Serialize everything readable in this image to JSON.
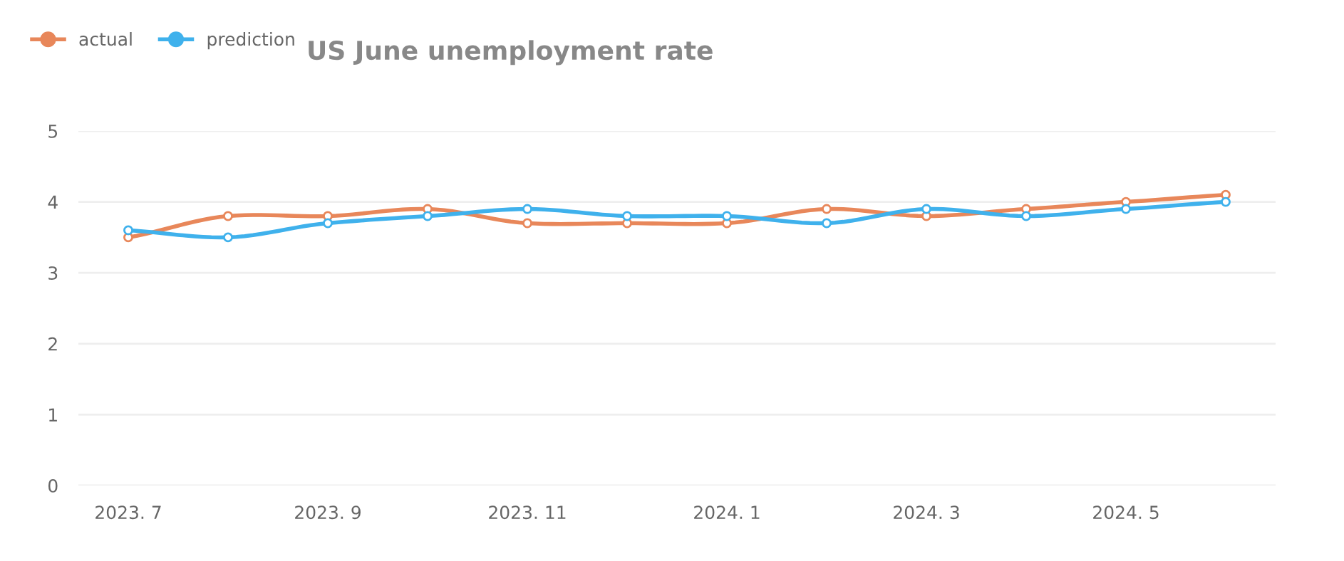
{
  "chart_data": {
    "type": "line",
    "title": "US June unemployment rate",
    "categories": [
      "2023. 7",
      null,
      "2023. 9",
      null,
      "2023. 11",
      null,
      "2024. 1",
      null,
      "2024. 3",
      null,
      "2024. 5",
      null
    ],
    "series": [
      {
        "name": "actual",
        "color": "#e8875a",
        "values": [
          3.5,
          3.8,
          3.8,
          3.9,
          3.7,
          3.7,
          3.7,
          3.9,
          3.8,
          3.9,
          4.0,
          4.1
        ]
      },
      {
        "name": "prediction",
        "color": "#3fb1ec",
        "values": [
          3.6,
          3.5,
          3.7,
          3.8,
          3.9,
          3.8,
          3.8,
          3.7,
          3.9,
          3.8,
          3.9,
          4.0
        ]
      }
    ],
    "ylim": [
      0,
      5
    ],
    "yticks": [
      0,
      1,
      2,
      3,
      4,
      5
    ],
    "grid": "y",
    "legend": "top left",
    "marker": "circle",
    "line_style": "solid"
  }
}
